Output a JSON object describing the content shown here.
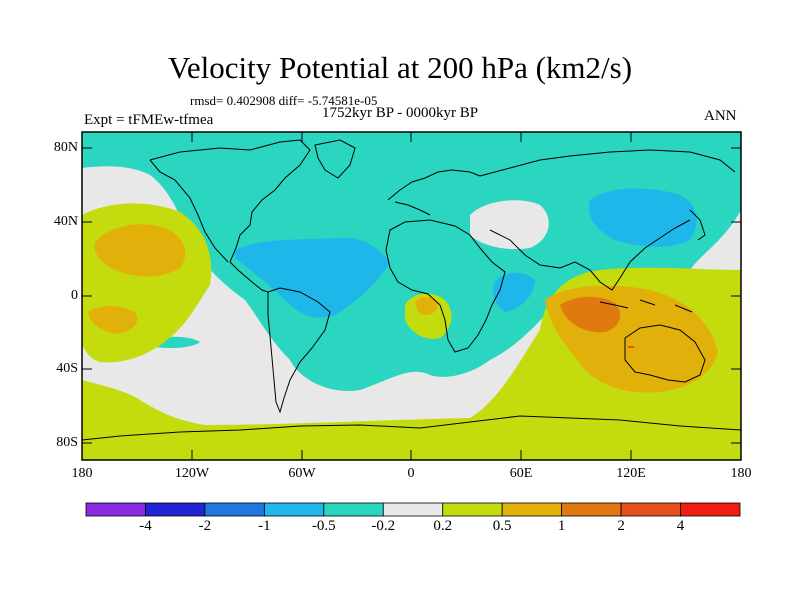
{
  "title": "Velocity Potential at 200 hPa (km2/s)",
  "stats": "rmsd= 0.402908 diff= -5.74581e-05",
  "period": "1752kyr BP - 0000kyr BP",
  "experiment": "Expt = tFMEw-tfmea",
  "season": "ANN",
  "y_axis": [
    "80N",
    "40N",
    "0",
    "40S",
    "80S"
  ],
  "x_axis": [
    "180",
    "120W",
    "60W",
    "0",
    "60E",
    "120E",
    "180"
  ],
  "colorbar": {
    "labels": [
      "-4",
      "-2",
      "-1",
      "-0.5",
      "-0.2",
      "0.2",
      "0.5",
      "1",
      "2",
      "4"
    ],
    "colors": [
      "#8a2be2",
      "#2323d6",
      "#1e78e0",
      "#1fb6ea",
      "#2ad6bf",
      "#e8e8e8",
      "#c4dc0e",
      "#e2b00a",
      "#e07a10",
      "#e8501a",
      "#ee1e14"
    ]
  }
}
